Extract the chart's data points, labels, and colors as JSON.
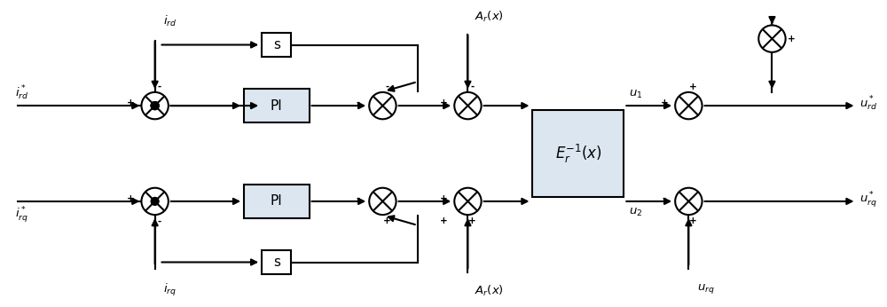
{
  "bg_color": "#ffffff",
  "line_color": "#000000",
  "box_fill": "#dce6f1",
  "fig_width": 10.0,
  "fig_height": 3.46,
  "dpi": 100,
  "labels": {
    "i_rd_top": "$i_{rd}$",
    "i_rd_star": "$i_{rd}^*$",
    "i_rq_star": "$i_{rq}^*$",
    "i_rq_bot": "$i_{rq}$",
    "Ar_top": "$A_r(x)$",
    "Ar_bot": "$A_r(x)$",
    "Er_inv": "$E_r^{-1}(x)$",
    "PI": "PI",
    "S": "s",
    "u1": "$u_1$",
    "u2": "$u_2$",
    "u_rd_star": "$u_{rd}^*$",
    "u_rq_star": "$u_{rq}^*$",
    "u_rq": "$u_{rq}$"
  }
}
